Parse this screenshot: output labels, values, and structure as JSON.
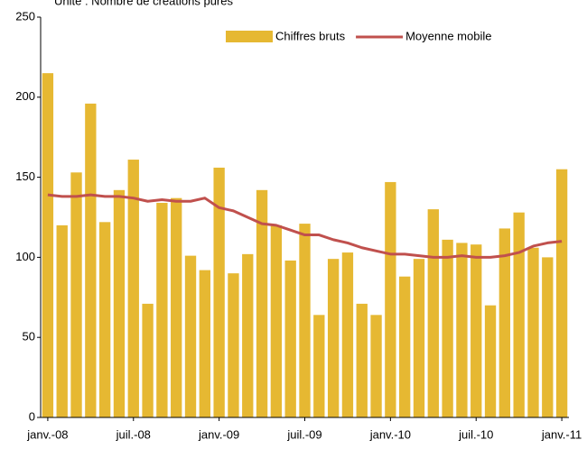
{
  "chart_data": {
    "type": "bar",
    "subtitle": "Unité : Nombre de créations pures",
    "categories": [
      "janv.-08",
      null,
      null,
      null,
      null,
      null,
      "juil.-08",
      null,
      null,
      null,
      null,
      null,
      "janv.-09",
      null,
      null,
      null,
      null,
      null,
      "juil.-09",
      null,
      null,
      null,
      null,
      null,
      "janv.-10",
      null,
      null,
      null,
      null,
      null,
      "juil.-10",
      null,
      null,
      null,
      null,
      null,
      "janv.-11"
    ],
    "series": [
      {
        "name": "Chiffres bruts",
        "type": "bar",
        "color": "#e6b832",
        "values": [
          215,
          120,
          153,
          196,
          122,
          142,
          161,
          71,
          134,
          137,
          101,
          92,
          156,
          90,
          102,
          142,
          120,
          98,
          121,
          64,
          99,
          103,
          71,
          64,
          147,
          88,
          99,
          130,
          111,
          109,
          108,
          70,
          118,
          128,
          106,
          100,
          155
        ]
      },
      {
        "name": "Moyenne mobile",
        "type": "line",
        "color": "#c0504d",
        "values": [
          139,
          138,
          138,
          139,
          138,
          138,
          137,
          135,
          136,
          135,
          135,
          137,
          131,
          129,
          125,
          121,
          120,
          117,
          114,
          114,
          111,
          109,
          106,
          104,
          102,
          102,
          101,
          100,
          100,
          101,
          100,
          100,
          101,
          103,
          107,
          109,
          110
        ]
      }
    ],
    "ylim": [
      0,
      250
    ],
    "yticks": [
      0,
      50,
      100,
      150,
      200,
      250
    ],
    "legend": "top-right",
    "grid": false
  }
}
